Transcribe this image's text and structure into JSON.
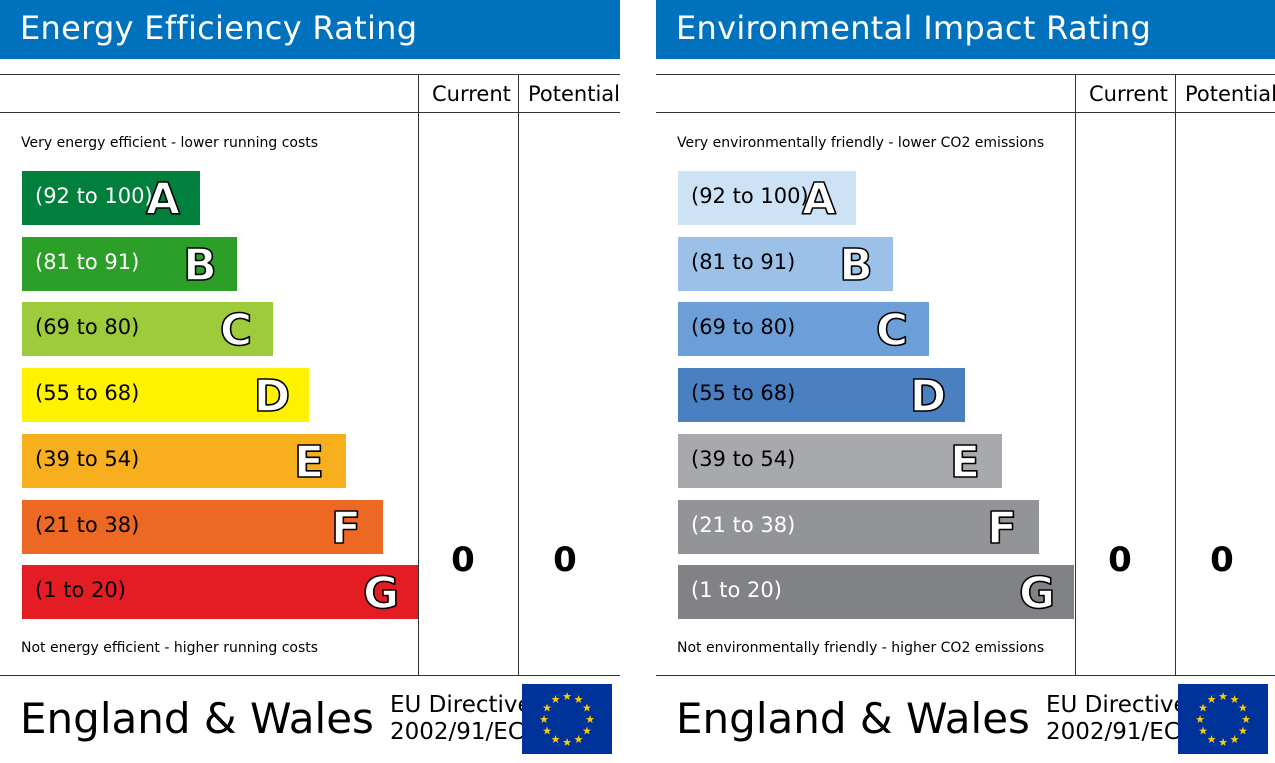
{
  "chart_data": [
    {
      "type": "bar",
      "title": "Energy Efficiency Rating",
      "columns": [
        "Current",
        "Potential"
      ],
      "top_caption": "Very energy efficient - lower running costs",
      "bottom_caption": "Not energy efficient - higher running costs",
      "bands": [
        {
          "range": "(92 to 100)",
          "letter": "A",
          "color": "#007f3d",
          "text_color": "#ffffff"
        },
        {
          "range": "(81 to 91)",
          "letter": "B",
          "color": "#2c9f29",
          "text_color": "#ffffff"
        },
        {
          "range": "(69 to 80)",
          "letter": "C",
          "color": "#9dcb3b",
          "text_color": "#000000"
        },
        {
          "range": "(55 to 68)",
          "letter": "D",
          "color": "#fff200",
          "text_color": "#000000"
        },
        {
          "range": "(39 to 54)",
          "letter": "E",
          "color": "#f7af1d",
          "text_color": "#000000"
        },
        {
          "range": "(21 to 38)",
          "letter": "F",
          "color": "#ed6823",
          "text_color": "#000000"
        },
        {
          "range": "(1 to 20)",
          "letter": "G",
          "color": "#e31d23",
          "text_color": "#000000"
        }
      ],
      "current": "0",
      "potential": "0",
      "footer": {
        "country": "England & Wales",
        "directive_line1": "EU Directive",
        "directive_line2": "2002/91/EC"
      }
    },
    {
      "type": "bar",
      "title": "Environmental Impact Rating",
      "columns": [
        "Current",
        "Potential"
      ],
      "top_caption": "Very environmentally friendly - lower CO2 emissions",
      "bottom_caption": "Not environmentally friendly - higher CO2 emissions",
      "bands": [
        {
          "range": "(92 to 100)",
          "letter": "A",
          "color": "#cde2f5",
          "text_color": "#000000"
        },
        {
          "range": "(81 to 91)",
          "letter": "B",
          "color": "#9cc1e8",
          "text_color": "#000000"
        },
        {
          "range": "(69 to 80)",
          "letter": "C",
          "color": "#6c9fd8",
          "text_color": "#000000"
        },
        {
          "range": "(55 to 68)",
          "letter": "D",
          "color": "#4a7fc2",
          "text_color": "#000000"
        },
        {
          "range": "(39 to 54)",
          "letter": "E",
          "color": "#a7a9ac",
          "text_color": "#000000"
        },
        {
          "range": "(21 to 38)",
          "letter": "F",
          "color": "#929497",
          "text_color": "#ffffff"
        },
        {
          "range": "(1 to 20)",
          "letter": "G",
          "color": "#808285",
          "text_color": "#ffffff"
        }
      ],
      "current": "0",
      "potential": "0",
      "footer": {
        "country": "England & Wales",
        "directive_line1": "EU Directive",
        "directive_line2": "2002/91/EC"
      }
    }
  ],
  "colors": {
    "title_bar": "#0071bc",
    "eu_flag_blue": "#003399",
    "eu_flag_stars": "#ffcc00"
  }
}
